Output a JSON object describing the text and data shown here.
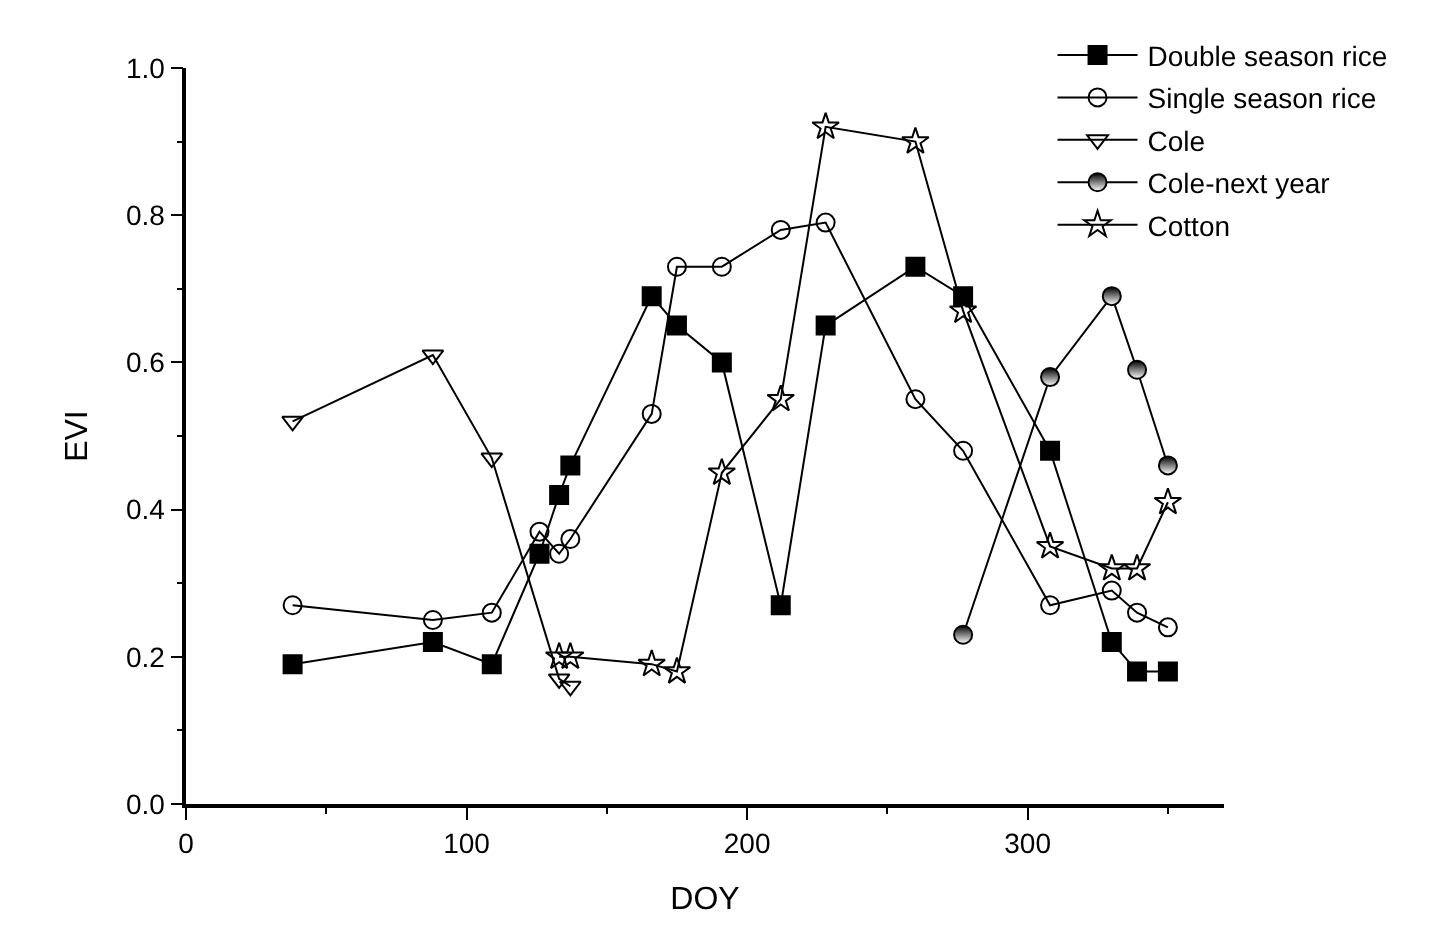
{
  "chart_data": {
    "type": "line",
    "xlabel": "DOY",
    "ylabel": "EVI",
    "xlim": [
      0,
      370
    ],
    "xticks": [
      0,
      100,
      200,
      300
    ],
    "ylim": [
      0,
      1.0
    ],
    "yticks": [
      {
        "value": 0,
        "label": "0.0"
      },
      {
        "value": 0.2,
        "label": "0.2"
      },
      {
        "value": 0.4,
        "label": "0.4"
      },
      {
        "value": 0.6,
        "label": "0.6"
      },
      {
        "value": 0.8,
        "label": "0.8"
      },
      {
        "value": 1.0,
        "label": "1.0"
      }
    ],
    "legend": "top right",
    "line_style": "solid",
    "series": [
      {
        "name": "Double season rice",
        "color": "#000000",
        "marker": "square",
        "x": [
          38,
          88,
          109,
          126,
          133,
          137,
          166,
          175,
          191,
          212,
          228,
          260,
          277,
          308,
          330,
          339,
          350
        ],
        "values": [
          0.19,
          0.22,
          0.19,
          0.34,
          0.42,
          0.46,
          0.69,
          0.65,
          0.6,
          0.27,
          0.65,
          0.73,
          0.69,
          0.48,
          0.22,
          0.18,
          0.18
        ]
      },
      {
        "name": "Single season rice",
        "color": "#000000",
        "marker": "circle",
        "x": [
          38,
          88,
          109,
          126,
          133,
          137,
          166,
          175,
          191,
          212,
          228,
          260,
          277,
          308,
          330,
          339,
          350
        ],
        "values": [
          0.27,
          0.25,
          0.26,
          0.37,
          0.34,
          0.36,
          0.53,
          0.73,
          0.73,
          0.78,
          0.79,
          0.55,
          0.48,
          0.27,
          0.29,
          0.26,
          0.24
        ]
      },
      {
        "name": "Cole",
        "color": "#000000",
        "marker": "triangle",
        "x": [
          38,
          88,
          109,
          133,
          137
        ],
        "values": [
          0.52,
          0.61,
          0.47,
          0.17,
          0.16
        ]
      },
      {
        "name": "Cole-next year",
        "color": "#000000",
        "marker": "halfcircle",
        "x": [
          277,
          308,
          330,
          339,
          350
        ],
        "values": [
          0.23,
          0.58,
          0.69,
          0.59,
          0.46
        ]
      },
      {
        "name": "Cotton",
        "color": "#000000",
        "marker": "star",
        "x": [
          133,
          137,
          166,
          175,
          191,
          212,
          228,
          260,
          277,
          308,
          330,
          339,
          350
        ],
        "values": [
          0.2,
          0.2,
          0.19,
          0.18,
          0.45,
          0.55,
          0.92,
          0.9,
          0.67,
          0.35,
          0.32,
          0.32,
          0.41
        ]
      }
    ]
  }
}
